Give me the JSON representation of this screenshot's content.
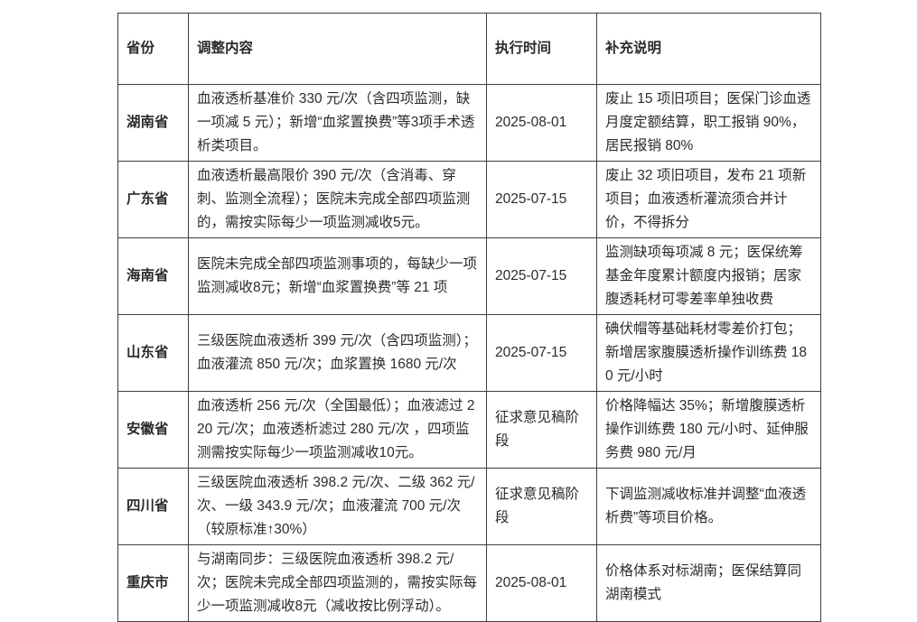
{
  "table": {
    "headers": [
      "省份",
      "调整内容",
      "执行时间",
      "补充说明"
    ],
    "rows": [
      {
        "province": "湖南省",
        "content": "血液透析基准价 330 元/次（含四项监测，缺一项减 5 元）；新增“血浆置换费”等3项手术透析类项目。",
        "time": "2025-08-01",
        "notes": "废止 15 项旧项目；医保门诊血透月度定额结算，职工报销 90%，居民报销 80%"
      },
      {
        "province": "广东省",
        "content": "血液透析最高限价 390 元/次（含消毒、穿刺、监测全流程）；医院未完成全部四项监测的，需按实际每少一项监测减收5元。",
        "time": "2025-07-15",
        "notes": "废止 32 项旧项目，发布 21 项新项目；血液透析灌流须合并计价，不得拆分"
      },
      {
        "province": "海南省",
        "content": "医院未完成全部四项监测事项的，每缺少一项监测减收8元；新增“血浆置换费”等 21 项",
        "time": "2025-07-15",
        "notes": "监测缺项每项减 8 元；医保统筹基金年度累计额度内报销；居家腹透耗材可零差率单独收费"
      },
      {
        "province": "山东省",
        "content": "三级医院血液透析 399 元/次（含四项监测）；血液灌流 850 元/次；血浆置换 1680 元/次",
        "time": "2025-07-15",
        "notes": "碘伏帽等基础耗材零差价打包；新增居家腹膜透析操作训练费 180 元/小时"
      },
      {
        "province": "安徽省",
        "content": "血液透析 256 元/次（全国最低）；血液滤过 220 元/次；血液透析滤过 280 元/次 ，四项监测需按实际每少一项监测减收10元。",
        "time": "征求意见稿阶段",
        "notes": "价格降幅达 35%；新增腹膜透析操作训练费 180 元/小时、延伸服务费 980 元/月"
      },
      {
        "province": "四川省",
        "content": "三级医院血液透析 398.2 元/次、二级 362 元/次、一级 343.9 元/次；血液灌流 700 元/次（较原标准↑30%）",
        "time": "征求意见稿阶段",
        "notes": "下调监测减收标准并调整“血液透析费”等项目价格。"
      },
      {
        "province": "重庆市",
        "content": "与湖南同步：三级医院血液透析 398.2 元/次；医院未完成全部四项监测的，需按实际每少一项监测减收8元（减收按比例浮动）。",
        "time": "2025-08-01",
        "notes": "价格体系对标湖南；医保结算同湖南模式"
      }
    ]
  }
}
